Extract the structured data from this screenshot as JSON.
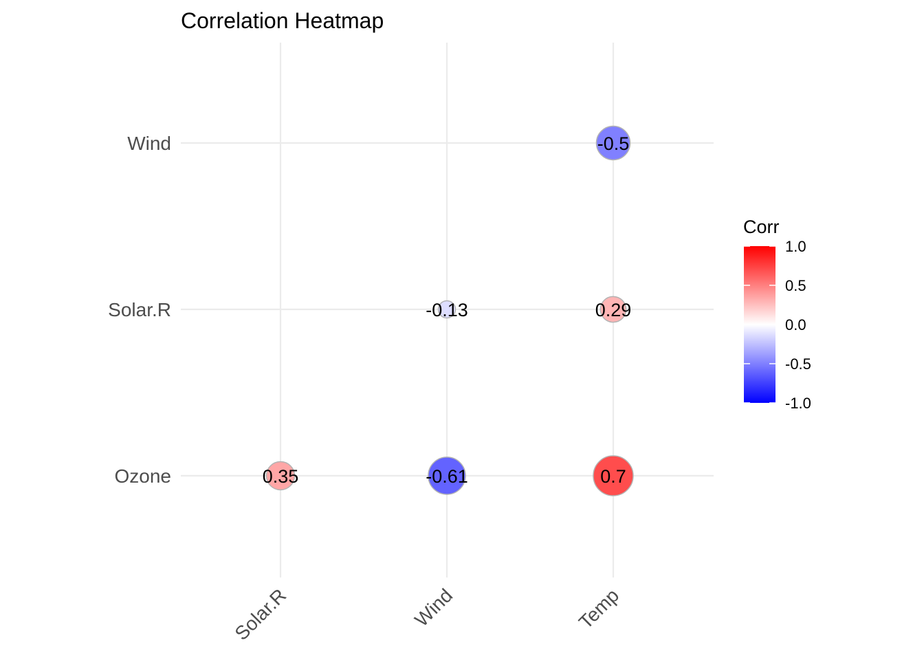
{
  "chart_data": {
    "type": "heatmap",
    "title": "Correlation Heatmap",
    "x_categories": [
      "Solar.R",
      "Wind",
      "Temp"
    ],
    "y_categories": [
      "Ozone",
      "Solar.R",
      "Wind"
    ],
    "cells": [
      {
        "x": "Solar.R",
        "y": "Ozone",
        "value": 0.35,
        "label": "0.35"
      },
      {
        "x": "Wind",
        "y": "Ozone",
        "value": -0.61,
        "label": "-0.61"
      },
      {
        "x": "Temp",
        "y": "Ozone",
        "value": 0.7,
        "label": "0.7"
      },
      {
        "x": "Wind",
        "y": "Solar.R",
        "value": -0.13,
        "label": "-0.13"
      },
      {
        "x": "Temp",
        "y": "Solar.R",
        "value": 0.29,
        "label": "0.29"
      },
      {
        "x": "Temp",
        "y": "Wind",
        "value": -0.5,
        "label": "-0.5"
      }
    ],
    "marker": "circle sized by |value|",
    "legend": {
      "title": "Corr",
      "ticks": [
        {
          "value": 1.0,
          "label": "1.0"
        },
        {
          "value": 0.5,
          "label": "0.5"
        },
        {
          "value": 0.0,
          "label": "0.0"
        },
        {
          "value": -0.5,
          "label": "-0.5"
        },
        {
          "value": -1.0,
          "label": "-1.0"
        }
      ],
      "range": [
        -1,
        1
      ],
      "colors": {
        "low": "#0000ff",
        "mid": "#ffffff",
        "high": "#ff0000"
      },
      "placement": "right"
    },
    "grid": true
  }
}
